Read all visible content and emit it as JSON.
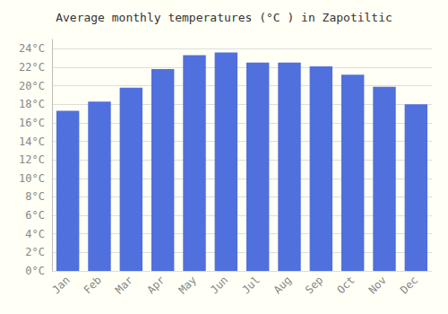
{
  "chart_data": {
    "type": "bar",
    "title": "Average monthly temperatures (°C ) in Zapotiltic",
    "categories": [
      "Jan",
      "Feb",
      "Mar",
      "Apr",
      "May",
      "Jun",
      "Jul",
      "Aug",
      "Sep",
      "Oct",
      "Nov",
      "Dec"
    ],
    "values": [
      17.3,
      18.3,
      19.8,
      21.8,
      23.3,
      23.6,
      22.5,
      22.5,
      22.1,
      21.2,
      19.9,
      18.0
    ],
    "ylim": [
      0,
      25
    ],
    "yticks": [
      {
        "value": 0,
        "label": "0°C"
      },
      {
        "value": 2,
        "label": "2°C"
      },
      {
        "value": 4,
        "label": "4°C"
      },
      {
        "value": 6,
        "label": "6°C"
      },
      {
        "value": 8,
        "label": "8°C"
      },
      {
        "value": 10,
        "label": "10°C"
      },
      {
        "value": 12,
        "label": "12°C"
      },
      {
        "value": 14,
        "label": "14°C"
      },
      {
        "value": 16,
        "label": "16°C"
      },
      {
        "value": 18,
        "label": "18°C"
      },
      {
        "value": 20,
        "label": "20°C"
      },
      {
        "value": 22,
        "label": "22°C"
      },
      {
        "value": 24,
        "label": "24°C"
      }
    ],
    "grid": true
  }
}
